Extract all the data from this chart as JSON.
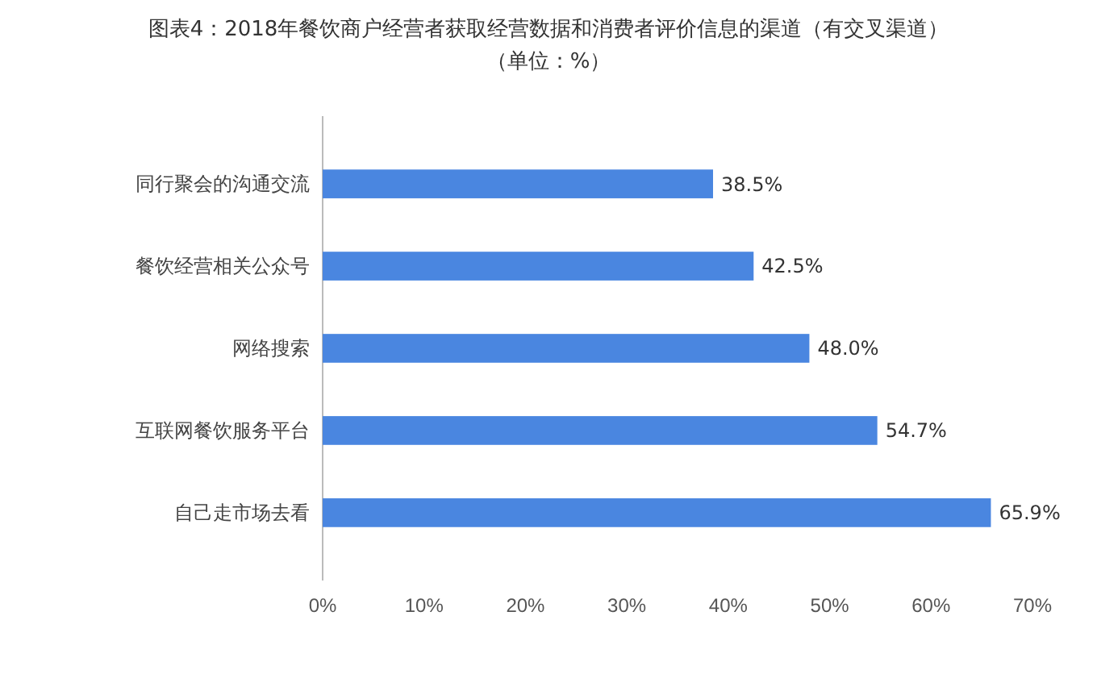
{
  "chart_data": {
    "type": "bar",
    "orientation": "horizontal",
    "title": "图表4：2018年餐饮商户经营者获取经营数据和消费者评价信息的渠道（有交叉渠道）",
    "subtitle": "（单位：%）",
    "categories": [
      "同行聚会的沟通交流",
      "餐饮经营相关公众号",
      "网络搜索",
      "互联网餐饮服务平台",
      "自己走市场去看"
    ],
    "values": [
      38.5,
      42.5,
      48.0,
      54.7,
      65.9
    ],
    "value_labels": [
      "38.5%",
      "42.5%",
      "48.0%",
      "54.7%",
      "65.9%"
    ],
    "color": "#4a86e0",
    "xlim": [
      0,
      70
    ],
    "xticks": [
      {
        "value": 0,
        "label": "0%"
      },
      {
        "value": 10,
        "label": "10%"
      },
      {
        "value": 20,
        "label": "20%"
      },
      {
        "value": 30,
        "label": "30%"
      },
      {
        "value": 40,
        "label": "40%"
      },
      {
        "value": 50,
        "label": "50%"
      },
      {
        "value": 60,
        "label": "60%"
      },
      {
        "value": 70,
        "label": "70%"
      }
    ],
    "grid": false
  }
}
